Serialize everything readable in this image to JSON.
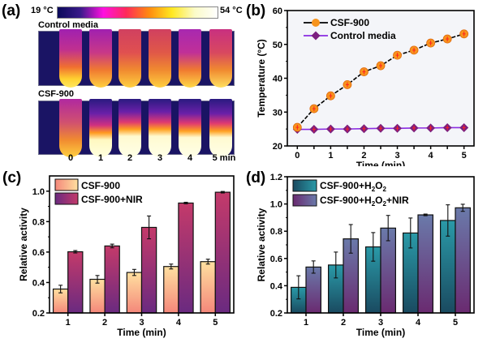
{
  "panel_a": {
    "label": "(a)",
    "colorbar_min": "19 °C",
    "colorbar_max": "54 °C",
    "row1_title": "Control media",
    "row2_title": "CSF-900",
    "time_labels": [
      "0",
      "1",
      "2",
      "3",
      "4",
      "5 min"
    ],
    "colorbar_colors": [
      "#0a0a5a",
      "#3a1a8a",
      "#ff10e0",
      "#ff2a5a",
      "#ff8a10",
      "#ffe820",
      "#fbfbc8",
      "#ffffff"
    ]
  },
  "chart_data": [
    {
      "panel": "(b)",
      "type": "line",
      "title": "",
      "xlabel": "Time (min)",
      "ylabel": "Temperature (°C)",
      "xlim": [
        -0.3,
        5.3
      ],
      "ylim": [
        20,
        60
      ],
      "xticks": [
        "0",
        "1",
        "2",
        "3",
        "4",
        "5"
      ],
      "yticks": [
        "20",
        "30",
        "40",
        "50",
        "60"
      ],
      "legend_position": "top-left",
      "x": [
        0,
        0.5,
        1,
        1.5,
        2,
        2.5,
        3,
        3.5,
        4,
        4.5,
        5
      ],
      "series": [
        {
          "name": "CSF-900",
          "color": "#f7941d",
          "line_color": "#000000",
          "marker": "circle",
          "values": [
            25.5,
            31.0,
            34.8,
            38.1,
            41.9,
            43.7,
            46.8,
            48.3,
            50.4,
            51.6,
            53.1
          ]
        },
        {
          "name": "Control media",
          "color": "#7b1f7f",
          "line_color": "#8a2be2",
          "marker": "diamond",
          "values": [
            24.9,
            24.9,
            25.0,
            25.0,
            25.1,
            25.2,
            25.2,
            25.3,
            25.3,
            25.4,
            25.4
          ]
        }
      ]
    },
    {
      "panel": "(c)",
      "type": "bar",
      "title": "",
      "xlabel": "Time (min)",
      "ylabel": "Relative activity",
      "categories": [
        "1",
        "2",
        "3",
        "4",
        "5"
      ],
      "ylim": [
        0.2,
        1.1
      ],
      "yticks": [
        "0.2",
        "0.4",
        "0.6",
        "0.8",
        "1.0"
      ],
      "legend_position": "top-left",
      "series": [
        {
          "name": "CSF-900",
          "gradient": [
            "#f4877a",
            "#ffe0a0"
          ],
          "values": [
            0.357,
            0.421,
            0.466,
            0.505,
            0.537
          ],
          "errors": [
            0.025,
            0.025,
            0.02,
            0.016,
            0.016
          ]
        },
        {
          "name": "CSF-900+NIR",
          "gradient": [
            "#6a2a80",
            "#c43a6a"
          ],
          "values": [
            0.602,
            0.64,
            0.762,
            0.922,
            0.993
          ],
          "errors": [
            0.008,
            0.012,
            0.075,
            0.005,
            0.005
          ]
        }
      ]
    },
    {
      "panel": "(d)",
      "type": "bar",
      "title": "",
      "xlabel": "Time (min)",
      "ylabel": "Relative activity",
      "categories": [
        "1",
        "2",
        "3",
        "4",
        "5"
      ],
      "ylim": [
        0.2,
        1.2
      ],
      "yticks": [
        "0.2",
        "0.4",
        "0.6",
        "0.8",
        "1.0",
        "1.2"
      ],
      "legend_position": "top-left",
      "series": [
        {
          "name": "CSF-900+H2O2",
          "gradient": [
            "#1a4a60",
            "#2a9aa8"
          ],
          "values": [
            0.388,
            0.552,
            0.685,
            0.787,
            0.879
          ],
          "errors": [
            0.085,
            0.095,
            0.105,
            0.11,
            0.115
          ]
        },
        {
          "name": "CSF-900+H2O2+NIR",
          "gradient": [
            "#6a2a70",
            "#6a7aaa"
          ],
          "values": [
            0.537,
            0.744,
            0.823,
            0.92,
            0.972
          ],
          "errors": [
            0.045,
            0.105,
            0.093,
            0.006,
            0.026
          ]
        }
      ]
    }
  ]
}
